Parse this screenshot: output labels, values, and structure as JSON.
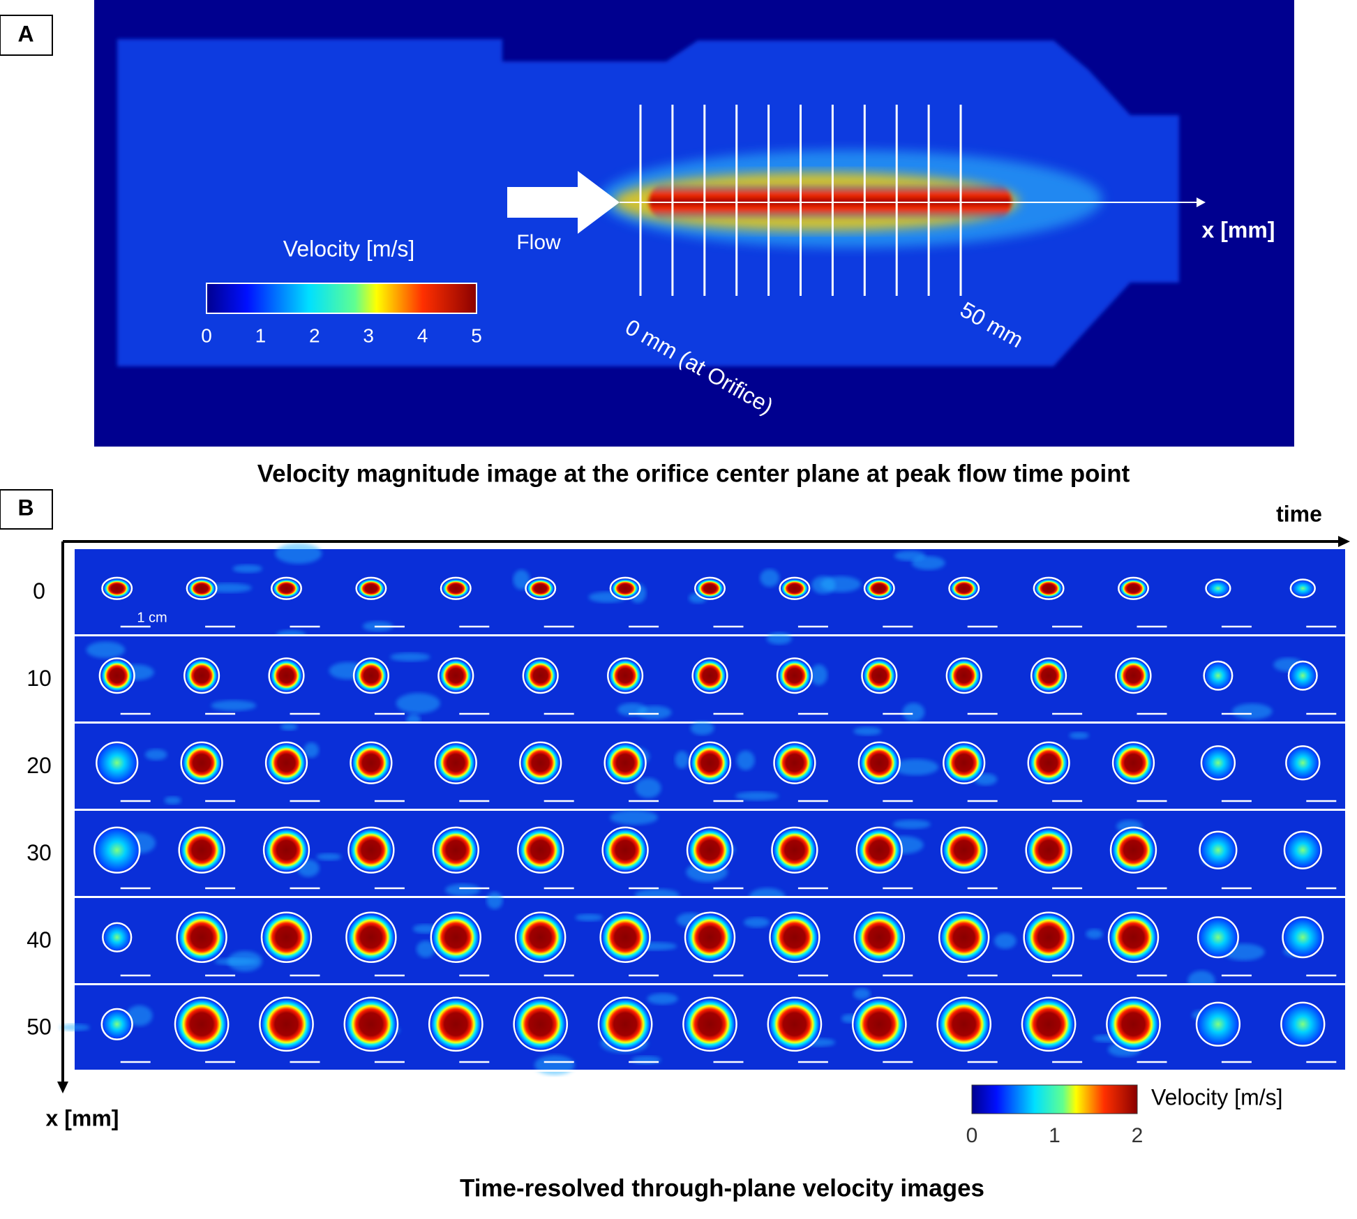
{
  "panel_a": {
    "label": "A",
    "colorbar_title": "Velocity [m/s]",
    "colorbar_ticks": [
      0,
      1,
      2,
      3,
      4,
      5
    ],
    "flow_label": "Flow",
    "axis_label": "x [mm]",
    "start_label": "0 mm (at Orifice)",
    "end_label": "50 mm",
    "caption": "Velocity magnitude image at the orifice center plane at peak flow time point"
  },
  "panel_b": {
    "label": "B",
    "time_label": "time",
    "axis_label": "x [mm]",
    "row_labels": [
      0,
      10,
      20,
      30,
      40,
      50
    ],
    "scale_label": "1 cm",
    "colorbar_title": "Velocity [m/s]",
    "colorbar_ticks": [
      0,
      1,
      2
    ],
    "caption": "Time-resolved through-plane velocity images"
  }
}
